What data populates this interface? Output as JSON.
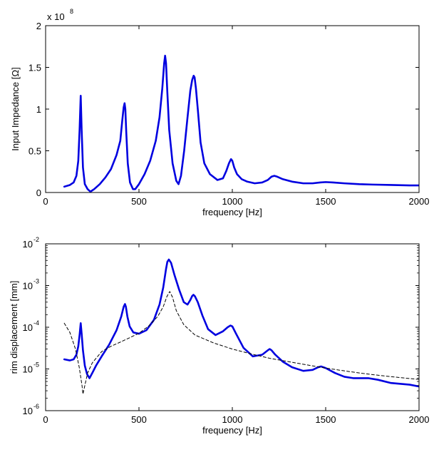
{
  "chart_data": [
    {
      "type": "line",
      "xlabel": "frequency [Hz]",
      "ylabel": "Input Impedance [Ω]",
      "multiplier_text": "x 10",
      "multiplier_exp": "8",
      "xlim": [
        0,
        2000
      ],
      "ylim": [
        0,
        2
      ],
      "yscale": "linear",
      "xticks": [
        0,
        500,
        1000,
        1500,
        2000
      ],
      "xtick_labels": [
        "0",
        "500",
        "1000",
        "1500",
        "2000"
      ],
      "yticks": [
        0,
        0.5,
        1,
        1.5,
        2
      ],
      "ytick_labels": [
        "0",
        "0.5",
        "1",
        "1.5",
        "2"
      ],
      "grid": false,
      "series": [
        {
          "color": "#0000e0",
          "style": "solid",
          "x": [
            100,
            130,
            150,
            165,
            175,
            182,
            188,
            193,
            200,
            210,
            225,
            240,
            260,
            290,
            320,
            350,
            380,
            400,
            410,
            418,
            423,
            427,
            432,
            440,
            452,
            468,
            480,
            500,
            530,
            560,
            590,
            610,
            625,
            635,
            640,
            645,
            652,
            662,
            680,
            700,
            712,
            725,
            742,
            760,
            775,
            785,
            793,
            798,
            805,
            815,
            830,
            850,
            880,
            920,
            950,
            968,
            982,
            993,
            1000,
            1010,
            1025,
            1050,
            1080,
            1120,
            1160,
            1190,
            1210,
            1225,
            1240,
            1270,
            1320,
            1380,
            1430,
            1470,
            1500,
            1540,
            1600,
            1680,
            1750,
            1850,
            1950,
            2000
          ],
          "y": [
            0.07,
            0.09,
            0.12,
            0.2,
            0.38,
            0.75,
            1.16,
            0.75,
            0.3,
            0.1,
            0.04,
            0.01,
            0.04,
            0.1,
            0.18,
            0.28,
            0.45,
            0.62,
            0.85,
            1.02,
            1.07,
            1.0,
            0.72,
            0.35,
            0.12,
            0.04,
            0.04,
            0.1,
            0.22,
            0.38,
            0.62,
            0.9,
            1.25,
            1.55,
            1.64,
            1.55,
            1.2,
            0.75,
            0.35,
            0.14,
            0.1,
            0.2,
            0.5,
            0.9,
            1.22,
            1.35,
            1.4,
            1.38,
            1.25,
            1.0,
            0.6,
            0.35,
            0.22,
            0.15,
            0.17,
            0.26,
            0.35,
            0.4,
            0.38,
            0.3,
            0.22,
            0.16,
            0.13,
            0.11,
            0.12,
            0.15,
            0.19,
            0.2,
            0.19,
            0.16,
            0.13,
            0.11,
            0.11,
            0.12,
            0.125,
            0.12,
            0.11,
            0.1,
            0.095,
            0.09,
            0.085,
            0.085
          ]
        }
      ]
    },
    {
      "type": "line",
      "xlabel": "frequency [Hz]",
      "ylabel": "rim displacement [mm]",
      "xlim": [
        0,
        2000
      ],
      "ylim": [
        1e-06,
        0.01
      ],
      "yscale": "log",
      "xticks": [
        0,
        500,
        1000,
        1500,
        2000
      ],
      "xtick_labels": [
        "0",
        "500",
        "1000",
        "1500",
        "2000"
      ],
      "yticks": [
        1e-06,
        1e-05,
        0.0001,
        0.001,
        0.01
      ],
      "ytick_base": [
        "10",
        "10",
        "10",
        "10",
        "10"
      ],
      "ytick_exps": [
        "-6",
        "-5",
        "-4",
        "-3",
        "-2"
      ],
      "grid": false,
      "series": [
        {
          "color": "#0000e0",
          "style": "solid",
          "x": [
            100,
            130,
            150,
            165,
            175,
            182,
            188,
            193,
            200,
            210,
            222,
            235,
            250,
            270,
            300,
            340,
            380,
            405,
            418,
            425,
            430,
            438,
            450,
            470,
            500,
            540,
            580,
            610,
            630,
            645,
            652,
            660,
            672,
            690,
            715,
            740,
            760,
            775,
            785,
            792,
            800,
            815,
            840,
            870,
            910,
            950,
            975,
            990,
            1000,
            1020,
            1060,
            1110,
            1160,
            1190,
            1200,
            1210,
            1230,
            1270,
            1320,
            1380,
            1430,
            1460,
            1475,
            1500,
            1550,
            1600,
            1650,
            1700,
            1730,
            1780,
            1850,
            1950,
            2000
          ],
          "y": [
            1.7e-05,
            1.6e-05,
            1.7e-05,
            2.2e-05,
            3.5e-05,
            6.5e-05,
            0.000125,
            7e-05,
            2.8e-05,
            1.2e-05,
            7.5e-06,
            6e-06,
            8e-06,
            1.2e-05,
            2e-05,
            3.8e-05,
            8.5e-05,
            0.00018,
            0.00031,
            0.00036,
            0.00031,
            0.00018,
            0.000105,
            7.5e-05,
            7e-05,
            8.5e-05,
            0.00015,
            0.00035,
            0.0009,
            0.0025,
            0.0037,
            0.0042,
            0.0035,
            0.0018,
            0.0008,
            0.0004,
            0.00035,
            0.00045,
            0.00056,
            0.0006,
            0.00055,
            0.0004,
            0.00019,
            9e-05,
            6.5e-05,
            8e-05,
            0.0001,
            0.00011,
            0.000105,
            7e-05,
            3.2e-05,
            2e-05,
            2.2e-05,
            2.8e-05,
            3e-05,
            2.8e-05,
            2.2e-05,
            1.5e-05,
            1.1e-05,
            9e-06,
            9.5e-06,
            1.1e-05,
            1.15e-05,
            1.05e-05,
            8e-06,
            6.5e-06,
            6e-06,
            6e-06,
            6e-06,
            5.5e-06,
            4.6e-06,
            4.2e-06,
            3.8e-06
          ]
        },
        {
          "color": "#000000",
          "style": "dashed",
          "x": [
            100,
            130,
            160,
            180,
            195,
            200,
            210,
            225,
            250,
            300,
            350,
            400,
            450,
            500,
            550,
            600,
            630,
            650,
            665,
            680,
            700,
            740,
            800,
            900,
            1000,
            1100,
            1200,
            1300,
            1400,
            1500,
            1600,
            1700,
            1800,
            1900,
            2000
          ],
          "y": [
            0.000125,
            7.5e-05,
            3e-05,
            1.1e-05,
            4e-06,
            2.5e-06,
            4e-06,
            8e-06,
            1.4e-05,
            2.6e-05,
            3.5e-05,
            4.4e-05,
            5.6e-05,
            7.2e-05,
            0.000105,
            0.00018,
            0.00031,
            0.00055,
            0.00072,
            0.00052,
            0.00025,
            0.000115,
            6.5e-05,
            4.2e-05,
            3e-05,
            2.3e-05,
            1.8e-05,
            1.5e-05,
            1.25e-05,
            1.05e-05,
            9e-06,
            7.8e-06,
            6.9e-06,
            6.2e-06,
            5.6e-06
          ]
        }
      ]
    }
  ]
}
